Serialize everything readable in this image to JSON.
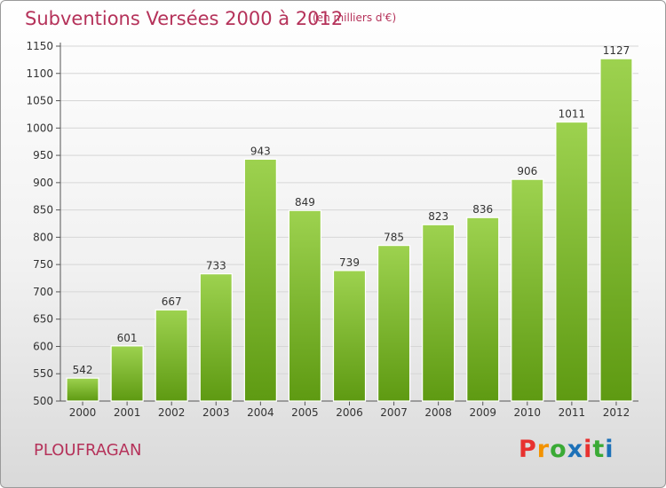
{
  "header": {
    "title": "Subventions Versées 2000 à 2012",
    "subtitle": "(en milliers d'€)"
  },
  "footer": {
    "place": "PLOUFRAGAN",
    "logo_text": "Proxiti"
  },
  "colors": {
    "title": "#b5325a",
    "bar_top": "#9dd24f",
    "bar_bottom": "#5e9a12",
    "logo_letters": [
      "#e8312f",
      "#f39200",
      "#3aaa35",
      "#1d71b8",
      "#e8312f",
      "#3aaa35",
      "#1d71b8"
    ]
  },
  "chart_data": {
    "type": "bar",
    "title": "Subventions Versées 2000 à 2012",
    "subtitle": "(en milliers d'€)",
    "xlabel": "",
    "ylabel": "",
    "categories": [
      "2000",
      "2001",
      "2002",
      "2003",
      "2004",
      "2005",
      "2006",
      "2007",
      "2008",
      "2009",
      "2010",
      "2011",
      "2012"
    ],
    "values": [
      542,
      601,
      667,
      733,
      943,
      849,
      739,
      785,
      823,
      836,
      906,
      1011,
      1127
    ],
    "ylim": [
      500,
      1150
    ],
    "yticks": [
      500,
      550,
      600,
      650,
      700,
      750,
      800,
      850,
      900,
      950,
      1000,
      1050,
      1100,
      1150
    ],
    "grid": true,
    "data_labels": true
  }
}
